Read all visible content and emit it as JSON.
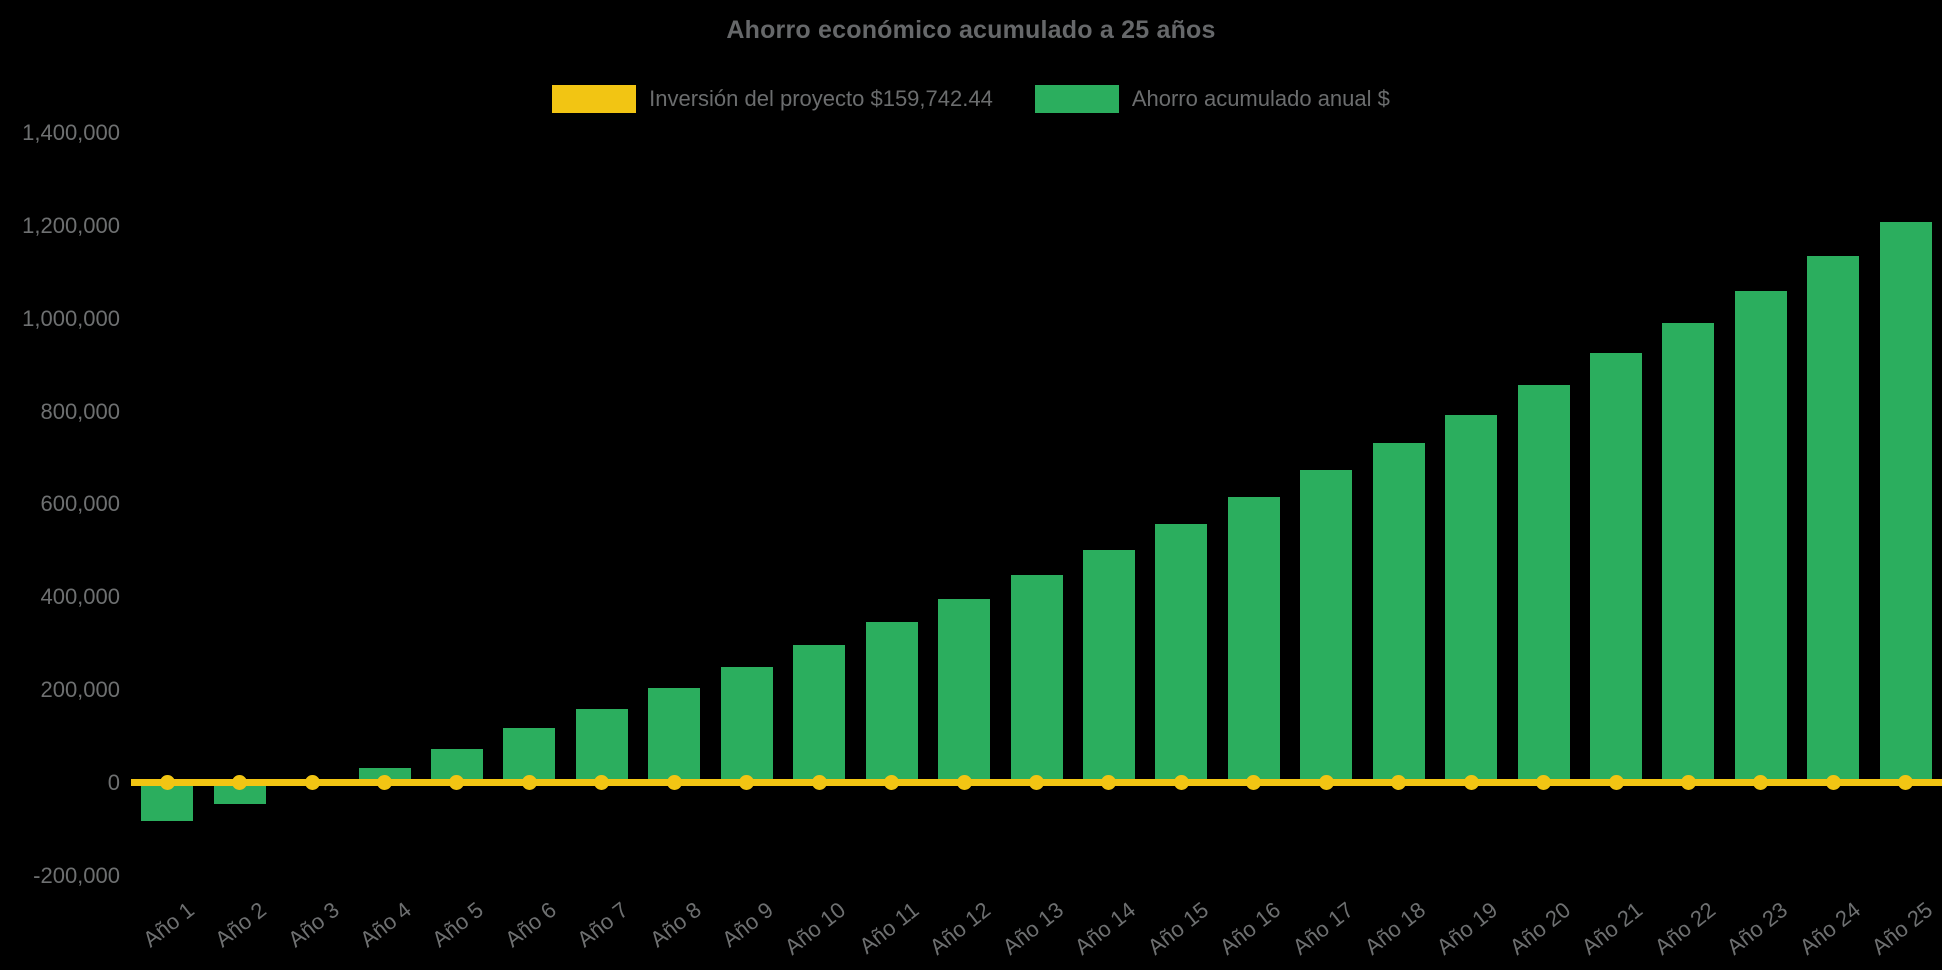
{
  "chart_data": {
    "type": "bar",
    "title": "Ahorro económico acumulado a 25 años",
    "categories": [
      "Año 1",
      "Año 2",
      "Año 3",
      "Año 4",
      "Año 5",
      "Año 6",
      "Año 7",
      "Año 8",
      "Año 9",
      "Año 10",
      "Año 11",
      "Año 12",
      "Año 13",
      "Año 14",
      "Año 15",
      "Año 16",
      "Año 17",
      "Año 18",
      "Año 19",
      "Año 20",
      "Año 21",
      "Año 22",
      "Año 23",
      "Año 24",
      "Año 25"
    ],
    "series": [
      {
        "name": "Inversión del proyecto $159,742.44",
        "type": "line",
        "color": "#F2C513",
        "values": [
          0,
          0,
          0,
          0,
          0,
          0,
          0,
          0,
          0,
          0,
          0,
          0,
          0,
          0,
          0,
          0,
          0,
          0,
          0,
          0,
          0,
          0,
          0,
          0,
          0
        ]
      },
      {
        "name": "Ahorro acumulado anual $",
        "type": "bar",
        "color": "#2BAE5E",
        "values": [
          -82000,
          -44000,
          -3000,
          32000,
          73500,
          118000,
          159000,
          206000,
          251000,
          298000,
          348000,
          397000,
          448000,
          502000,
          559000,
          617000,
          674000,
          732000,
          793000,
          857000,
          925000,
          991000,
          1059000,
          1135000,
          1207000
        ]
      }
    ],
    "xlabel": "",
    "ylabel": "",
    "ylim": [
      -200000,
      1400000
    ],
    "yticks": [
      {
        "label": "1,400,000",
        "value": 1400000
      },
      {
        "label": "1,200,000",
        "value": 1200000
      },
      {
        "label": "1,000,000",
        "value": 1000000
      },
      {
        "label": "800,000",
        "value": 800000
      },
      {
        "label": "600,000",
        "value": 600000
      },
      {
        "label": "400,000",
        "value": 400000
      },
      {
        "label": "200,000",
        "value": 200000
      },
      {
        "label": "0",
        "value": 0
      },
      {
        "label": "-200,000",
        "value": -200000
      }
    ],
    "grid": false,
    "legend_position": "top",
    "background_color": "#000000",
    "text_color": "#6e7071"
  }
}
